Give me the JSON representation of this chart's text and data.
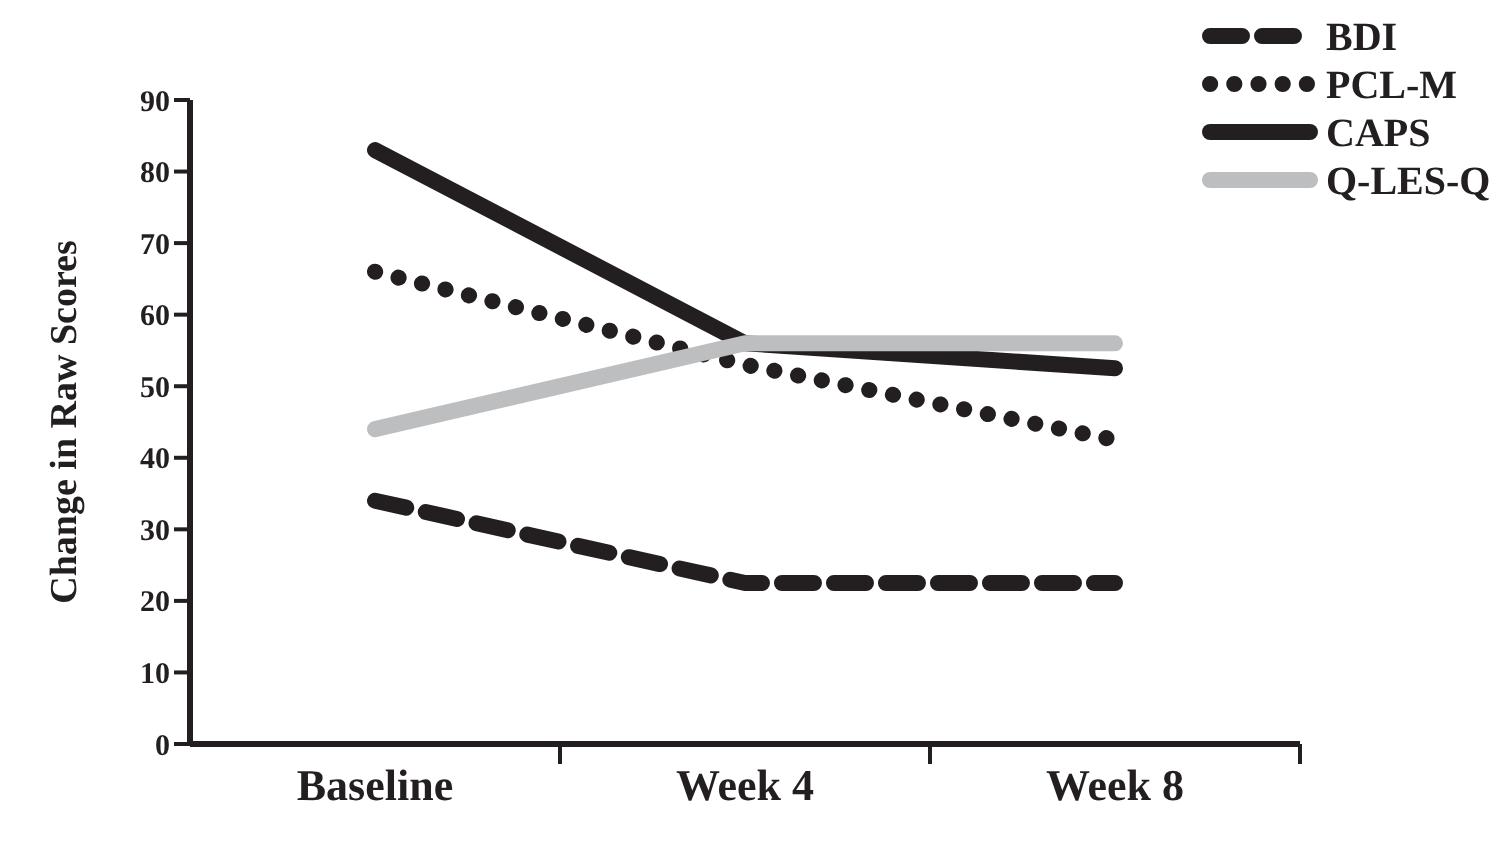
{
  "chart_data": {
    "type": "line",
    "ylabel": "Change in Raw Scores",
    "categories": [
      "Baseline",
      "Week 4",
      "Week 8"
    ],
    "ylim": [
      0,
      90
    ],
    "yticks": [
      0,
      10,
      20,
      30,
      40,
      50,
      60,
      70,
      80,
      90
    ],
    "legend": "top right",
    "grid": false,
    "series": [
      {
        "name": "BDI",
        "color": "#231f20",
        "line_style": "dashed",
        "values": [
          34,
          22.5,
          22.5
        ]
      },
      {
        "name": "PCL-M",
        "color": "#231f20",
        "line_style": "dotted",
        "values": [
          66,
          53,
          42.5
        ]
      },
      {
        "name": "CAPS",
        "color": "#231f20",
        "line_style": "solid",
        "values": [
          83,
          56,
          52.5
        ]
      },
      {
        "name": "Q-LES-Q",
        "color": "#bcbec0",
        "line_style": "solid",
        "values": [
          44,
          56,
          56
        ]
      }
    ]
  }
}
